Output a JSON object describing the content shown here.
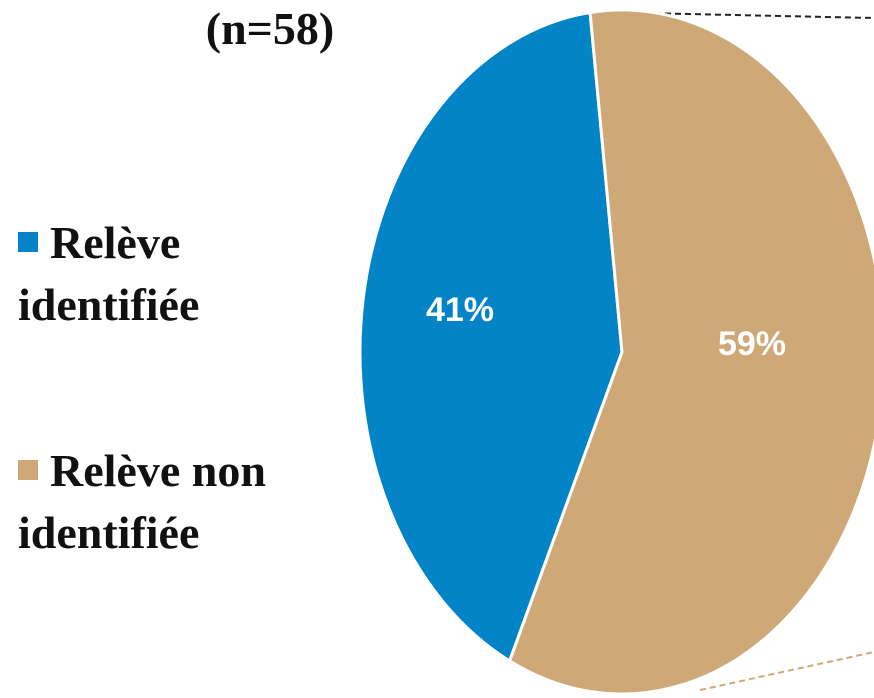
{
  "chart_data": {
    "type": "pie",
    "title": "(n=58)",
    "categories": [
      "Relève identifiée",
      "Relève non identifiée"
    ],
    "values": [
      41,
      59
    ],
    "value_labels": [
      "41%",
      "59%"
    ],
    "colors": [
      "#0284c7",
      "#cfa877"
    ]
  }
}
